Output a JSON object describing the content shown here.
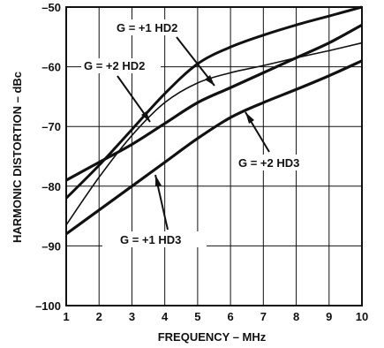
{
  "chart_data": {
    "type": "line",
    "xlabel": "FREQUENCY – MHz",
    "ylabel": "HARMONIC DISTORTION – dBc",
    "xlim": [
      1,
      10
    ],
    "ylim": [
      -100,
      -50
    ],
    "x_ticks": [
      1,
      2,
      3,
      4,
      5,
      6,
      7,
      8,
      9,
      10
    ],
    "y_ticks": [
      -50,
      -60,
      -70,
      -80,
      -90,
      -100
    ],
    "x_tick_labels": [
      "1",
      "2",
      "3",
      "4",
      "5",
      "6",
      "7",
      "8",
      "9",
      "10"
    ],
    "y_tick_labels": [
      "–50",
      "–60",
      "–70",
      "–80",
      "–90",
      "–100"
    ],
    "grid": true,
    "series": [
      {
        "name": "G = +1 HD2",
        "x": [
          1,
          2,
          3,
          4,
          5,
          6,
          7,
          8,
          9,
          10
        ],
        "y": [
          -82,
          -76.5,
          -70.5,
          -64.5,
          -59.5,
          -56.7,
          -54.7,
          -53,
          -51.5,
          -50
        ]
      },
      {
        "name": "G = +2 HD2",
        "x": [
          1,
          2,
          3,
          4,
          5,
          6,
          7,
          8,
          9,
          10
        ],
        "y": [
          -86.5,
          -78.5,
          -71.5,
          -66,
          -62.7,
          -61,
          -59.8,
          -58.5,
          -57.3,
          -56
        ]
      },
      {
        "name": "G = +2 HD3",
        "x": [
          1,
          2,
          3,
          4,
          5,
          6,
          7,
          8,
          9,
          10
        ],
        "y": [
          -79,
          -76,
          -73,
          -69.5,
          -66,
          -63.5,
          -61,
          -58.5,
          -56,
          -53
        ]
      },
      {
        "name": "G = +1 HD3",
        "x": [
          1,
          2,
          3,
          4,
          5,
          6,
          7,
          8,
          9,
          10
        ],
        "y": [
          -88,
          -84,
          -80,
          -76,
          -72,
          -68.5,
          -66,
          -63.8,
          -61.5,
          -59
        ]
      }
    ],
    "annotations": [
      "G = +1 HD2",
      "G = +2 HD2",
      "G = +2 HD3",
      "G = +1 HD3"
    ]
  }
}
